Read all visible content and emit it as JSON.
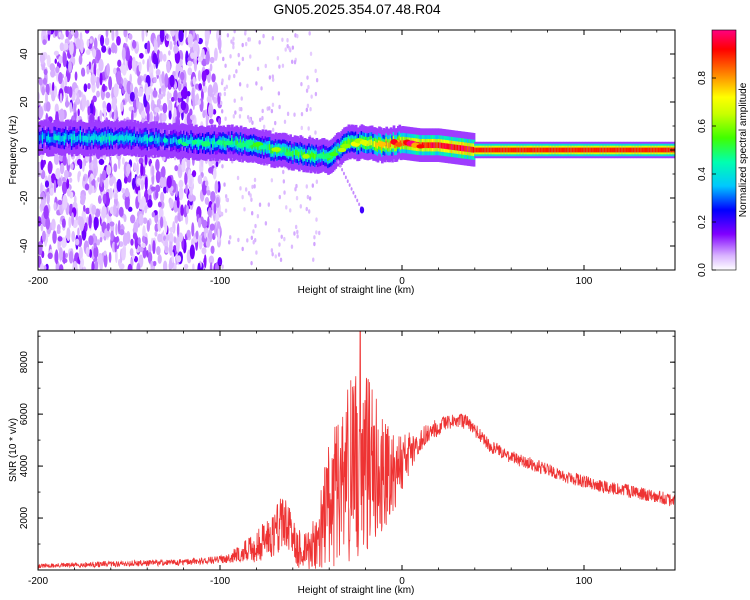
{
  "title": "GN05.2025.354.07.48.R04",
  "chart_data": [
    {
      "type": "heatmap",
      "xlabel": "Height of straight line (km)",
      "ylabel": "Frequency (Hz)",
      "xlim": [
        -200,
        150
      ],
      "ylim": [
        -50,
        50
      ],
      "xticks": [
        -200,
        -100,
        0,
        100
      ],
      "yticks": [
        -40,
        -20,
        0,
        20,
        40
      ],
      "colorbar": {
        "label": "Normalized spectral amplitude",
        "range": [
          0,
          1
        ],
        "ticks": [
          0.0,
          0.2,
          0.4,
          0.6,
          0.8
        ],
        "colormap": [
          "#ffffff",
          "#8000ff",
          "#0000ff",
          "#00c8ff",
          "#00ff80",
          "#80ff00",
          "#ffff00",
          "#ff8000",
          "#ff0000",
          "#ff0080"
        ]
      },
      "ridge": {
        "x": [
          -190,
          -170,
          -150,
          -130,
          -110,
          -95,
          -80,
          -70,
          -60,
          -50,
          -40,
          -30,
          -20,
          -10,
          0,
          10,
          20,
          30,
          40,
          60,
          80,
          100,
          120,
          150
        ],
        "freq": [
          5,
          5,
          5,
          4,
          3,
          3,
          2,
          0,
          -1,
          -2,
          -3,
          3,
          3,
          2,
          3,
          2,
          2,
          1,
          0,
          0,
          0,
          0,
          0,
          0
        ],
        "amplitude": [
          0.35,
          0.4,
          0.4,
          0.35,
          0.4,
          0.45,
          0.5,
          0.5,
          0.5,
          0.5,
          0.5,
          0.55,
          0.65,
          0.75,
          0.8,
          0.9,
          0.95,
          0.95,
          0.9,
          0.9,
          0.9,
          0.9,
          0.9,
          0.9
        ]
      },
      "noise_region_x": [
        -200,
        -100
      ],
      "isolated_feature": {
        "x": -22,
        "freq": -25
      }
    },
    {
      "type": "line",
      "xlabel": "Height of straight line (km)",
      "ylabel": "SNR (10 * v/v)",
      "xlim": [
        -200,
        150
      ],
      "ylim": [
        0,
        9200
      ],
      "xticks": [
        -200,
        -100,
        0,
        100
      ],
      "yticks": [
        2000,
        4000,
        6000,
        8000
      ],
      "color": "#ee3333",
      "envelope": {
        "x": [
          -200,
          -150,
          -120,
          -100,
          -90,
          -80,
          -70,
          -65,
          -60,
          -55,
          -50,
          -45,
          -40,
          -35,
          -30,
          -25,
          -20,
          -15,
          -10,
          -5,
          0,
          5,
          10,
          15,
          20,
          25,
          30,
          35,
          40,
          45,
          50,
          60,
          70,
          80,
          90,
          100,
          110,
          120,
          130,
          140,
          150
        ],
        "mean": [
          150,
          250,
          300,
          400,
          600,
          900,
          1500,
          2000,
          1100,
          700,
          800,
          1500,
          2500,
          3200,
          3700,
          4000,
          4200,
          4000,
          3800,
          3900,
          4200,
          4600,
          5000,
          5300,
          5500,
          5650,
          5750,
          5700,
          5400,
          5000,
          4700,
          4350,
          4100,
          3850,
          3600,
          3400,
          3200,
          3100,
          2950,
          2850,
          2650
        ],
        "spread": [
          80,
          120,
          120,
          150,
          300,
          600,
          1000,
          1200,
          900,
          700,
          800,
          1500,
          2500,
          3000,
          3500,
          3800,
          3500,
          2800,
          2300,
          1800,
          1200,
          700,
          450,
          350,
          350,
          300,
          300,
          300,
          300,
          280,
          280,
          250,
          250,
          250,
          250,
          250,
          250,
          250,
          250,
          250,
          250
        ]
      },
      "peak": {
        "x": -23,
        "y": 9200
      }
    }
  ]
}
